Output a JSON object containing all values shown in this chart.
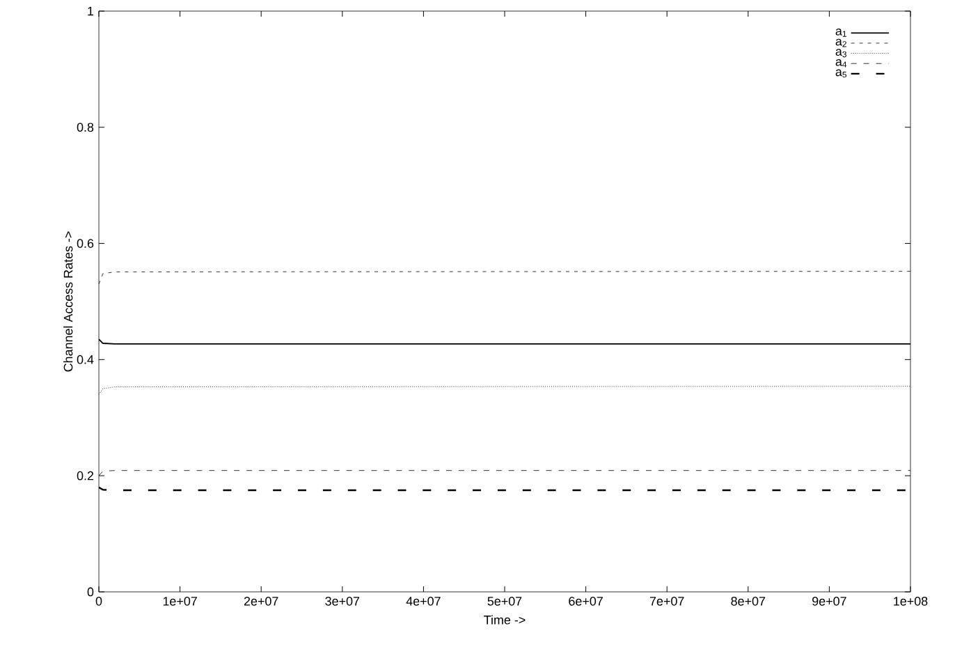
{
  "chart_data": {
    "type": "line",
    "xlabel": "Time ->",
    "ylabel": "Channel Access Rates ->",
    "xlim": [
      0,
      100000000
    ],
    "ylim": [
      0,
      1
    ],
    "xticks": [
      0,
      {
        "value": 10000000,
        "label": "1e+07"
      },
      {
        "value": 20000000,
        "label": "2e+07"
      },
      {
        "value": 30000000,
        "label": "3e+07"
      },
      {
        "value": 40000000,
        "label": "4e+07"
      },
      {
        "value": 50000000,
        "label": "5e+07"
      },
      {
        "value": 60000000,
        "label": "6e+07"
      },
      {
        "value": 70000000,
        "label": "7e+07"
      },
      {
        "value": 80000000,
        "label": "8e+07"
      },
      {
        "value": 90000000,
        "label": "9e+07"
      },
      {
        "value": 100000000,
        "label": "1e+08"
      }
    ],
    "yticks": [
      0,
      0.2,
      0.4,
      0.6,
      0.8,
      1
    ],
    "x": [
      0,
      500000,
      2000000,
      100000000
    ],
    "series": [
      {
        "name": "a$_{1}$",
        "color": "#000000",
        "line_style": "solid",
        "values": [
          0.435,
          0.428,
          0.427,
          0.427
        ]
      },
      {
        "name": "a$_{2}$",
        "color": "#000000",
        "line_style": "dashed",
        "values": [
          0.53,
          0.548,
          0.551,
          0.552
        ]
      },
      {
        "name": "a$_{3}$",
        "color": "#000000",
        "line_style": "dotted",
        "values": [
          0.34,
          0.35,
          0.353,
          0.354
        ]
      },
      {
        "name": "a$_{4}$",
        "color": "#000000",
        "line_style": "dashed",
        "values": [
          0.2,
          0.208,
          0.209,
          0.209
        ]
      },
      {
        "name": "a$_{5}$",
        "color": "#000000",
        "line_style": "dashed",
        "values": [
          0.18,
          0.176,
          0.175,
          0.175
        ]
      }
    ],
    "legend": "top right",
    "grid": false
  }
}
